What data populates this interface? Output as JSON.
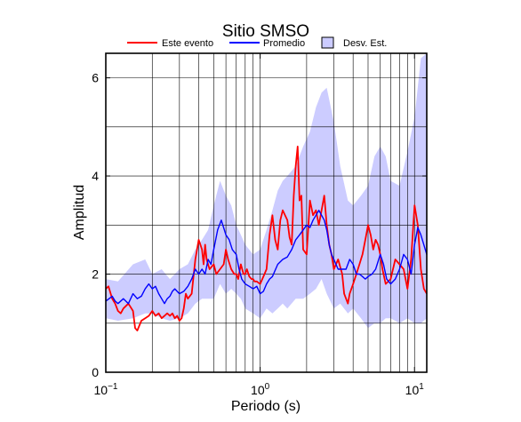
{
  "chart_data": {
    "type": "line",
    "title": "Sitio SMSO",
    "xlabel": "Periodo (s)",
    "ylabel": "Amplitud",
    "x_scale": "log",
    "xlim": [
      0.1,
      12
    ],
    "ylim": [
      0,
      6.5
    ],
    "x_ticks": [
      0.1,
      1,
      10
    ],
    "x_tick_labels": [
      {
        "base": "10",
        "exp": "−1"
      },
      {
        "base": "10",
        "exp": "0"
      },
      {
        "base": "10",
        "exp": "1"
      }
    ],
    "y_ticks": [
      0,
      2,
      4,
      6
    ],
    "y_tick_labels": [
      "0",
      "2",
      "4",
      "6"
    ],
    "grid": true,
    "legend_position": "top",
    "legend": [
      {
        "label": "Este evento",
        "kind": "line",
        "color": "#ff0000"
      },
      {
        "label": "Promedio",
        "kind": "line",
        "color": "#0000ff"
      },
      {
        "label": "Desv. Est.",
        "kind": "band",
        "color": "#ccccff"
      }
    ],
    "series": [
      {
        "name": "Este evento",
        "color": "#ff0000",
        "x": [
          0.1,
          0.104,
          0.11,
          0.115,
          0.12,
          0.125,
          0.13,
          0.14,
          0.15,
          0.155,
          0.16,
          0.17,
          0.18,
          0.19,
          0.2,
          0.21,
          0.22,
          0.23,
          0.24,
          0.25,
          0.26,
          0.27,
          0.28,
          0.29,
          0.3,
          0.31,
          0.32,
          0.33,
          0.34,
          0.36,
          0.38,
          0.4,
          0.41,
          0.42,
          0.43,
          0.44,
          0.45,
          0.47,
          0.5,
          0.52,
          0.55,
          0.58,
          0.6,
          0.62,
          0.65,
          0.68,
          0.7,
          0.72,
          0.75,
          0.78,
          0.8,
          0.82,
          0.85,
          0.88,
          0.9,
          0.92,
          0.95,
          1.0,
          1.05,
          1.1,
          1.15,
          1.2,
          1.25,
          1.3,
          1.35,
          1.4,
          1.5,
          1.55,
          1.6,
          1.65,
          1.7,
          1.75,
          1.8,
          1.85,
          1.9,
          2.0,
          2.1,
          2.2,
          2.3,
          2.4,
          2.5,
          2.6,
          2.7,
          2.8,
          2.9,
          3.0,
          3.2,
          3.4,
          3.5,
          3.7,
          3.8,
          4.0,
          4.2,
          4.4,
          4.6,
          4.8,
          5.0,
          5.2,
          5.4,
          5.6,
          5.8,
          6.0,
          6.2,
          6.5,
          7.0,
          7.5,
          8.0,
          8.5,
          9.0,
          9.5,
          10.0,
          10.5,
          11.0,
          11.5,
          12.0
        ],
        "y": [
          1.7,
          1.75,
          1.5,
          1.4,
          1.25,
          1.2,
          1.3,
          1.4,
          1.25,
          0.9,
          0.85,
          1.05,
          1.1,
          1.15,
          1.25,
          1.15,
          1.2,
          1.1,
          1.15,
          1.2,
          1.15,
          1.2,
          1.1,
          1.15,
          1.05,
          1.1,
          1.3,
          1.6,
          1.5,
          1.6,
          2.3,
          2.7,
          2.6,
          2.5,
          2.2,
          2.6,
          2.3,
          2.1,
          2.2,
          2.0,
          2.1,
          2.2,
          2.5,
          2.3,
          2.1,
          2.0,
          2.0,
          1.9,
          2.2,
          2.0,
          2.0,
          2.1,
          1.95,
          1.9,
          1.9,
          1.85,
          1.85,
          1.8,
          1.95,
          2.1,
          2.8,
          3.2,
          2.7,
          2.5,
          3.1,
          3.3,
          3.1,
          2.75,
          2.6,
          3.6,
          4.2,
          4.6,
          3.5,
          3.6,
          2.5,
          2.4,
          3.5,
          3.2,
          3.3,
          3.0,
          3.3,
          3.6,
          3.0,
          2.6,
          2.4,
          2.1,
          2.3,
          2.0,
          1.6,
          1.4,
          1.6,
          1.8,
          2.0,
          2.2,
          2.4,
          2.7,
          3.0,
          2.8,
          2.5,
          2.7,
          2.6,
          2.4,
          2.1,
          1.8,
          1.9,
          2.3,
          2.2,
          2.1,
          1.7,
          2.3,
          3.4,
          3.0,
          2.1,
          1.7,
          1.6
        ]
      },
      {
        "name": "Promedio",
        "color": "#0000ff",
        "x": [
          0.1,
          0.105,
          0.11,
          0.115,
          0.12,
          0.13,
          0.14,
          0.15,
          0.16,
          0.17,
          0.18,
          0.19,
          0.2,
          0.21,
          0.22,
          0.23,
          0.24,
          0.25,
          0.26,
          0.27,
          0.28,
          0.3,
          0.32,
          0.34,
          0.36,
          0.38,
          0.4,
          0.42,
          0.44,
          0.46,
          0.48,
          0.5,
          0.53,
          0.56,
          0.6,
          0.63,
          0.66,
          0.7,
          0.73,
          0.76,
          0.8,
          0.85,
          0.9,
          0.95,
          1.0,
          1.05,
          1.1,
          1.15,
          1.2,
          1.3,
          1.4,
          1.5,
          1.6,
          1.7,
          1.8,
          1.9,
          2.0,
          2.1,
          2.2,
          2.3,
          2.4,
          2.5,
          2.6,
          2.7,
          2.8,
          2.9,
          3.0,
          3.2,
          3.4,
          3.6,
          3.8,
          4.0,
          4.2,
          4.4,
          4.6,
          4.8,
          5.0,
          5.3,
          5.6,
          6.0,
          6.3,
          6.6,
          7.0,
          7.5,
          8.0,
          8.5,
          9.0,
          9.5,
          10.0,
          10.5,
          11.0,
          12.0
        ],
        "y": [
          1.45,
          1.5,
          1.55,
          1.45,
          1.4,
          1.5,
          1.4,
          1.6,
          1.5,
          1.55,
          1.7,
          1.8,
          1.7,
          1.75,
          1.6,
          1.5,
          1.4,
          1.5,
          1.55,
          1.65,
          1.7,
          1.6,
          1.65,
          1.75,
          1.9,
          2.1,
          2.0,
          2.1,
          2.0,
          2.3,
          2.2,
          2.5,
          2.9,
          3.1,
          2.8,
          2.7,
          2.5,
          2.4,
          2.1,
          1.9,
          1.8,
          1.75,
          1.7,
          1.75,
          1.6,
          1.65,
          1.8,
          1.9,
          1.95,
          2.2,
          2.3,
          2.35,
          2.5,
          2.7,
          2.8,
          2.9,
          3.0,
          2.95,
          3.1,
          3.2,
          3.3,
          3.2,
          3.1,
          2.9,
          2.6,
          2.4,
          2.3,
          2.1,
          2.1,
          2.1,
          2.3,
          2.2,
          2.0,
          2.0,
          1.95,
          1.9,
          1.95,
          2.0,
          2.1,
          2.4,
          2.2,
          1.9,
          1.8,
          1.9,
          2.1,
          2.4,
          2.3,
          2.0,
          2.6,
          2.95,
          2.8,
          2.4
        ]
      }
    ],
    "band": {
      "name": "Desv. Est.",
      "color": "#ccccff",
      "x": [
        0.1,
        0.12,
        0.15,
        0.18,
        0.2,
        0.23,
        0.26,
        0.3,
        0.34,
        0.38,
        0.42,
        0.46,
        0.5,
        0.55,
        0.6,
        0.65,
        0.7,
        0.75,
        0.8,
        0.9,
        1.0,
        1.1,
        1.2,
        1.3,
        1.4,
        1.5,
        1.7,
        1.9,
        2.1,
        2.3,
        2.5,
        2.7,
        3.0,
        3.3,
        3.7,
        4.0,
        4.5,
        5.0,
        5.5,
        6.0,
        6.5,
        7.0,
        8.0,
        9.0,
        10.0,
        11.0,
        12.0
      ],
      "upper": [
        1.9,
        1.85,
        2.2,
        2.3,
        2.0,
        2.1,
        1.9,
        2.1,
        2.2,
        2.5,
        2.7,
        2.9,
        3.4,
        3.9,
        3.6,
        3.4,
        3.0,
        2.8,
        2.6,
        2.4,
        2.5,
        2.9,
        3.3,
        3.7,
        3.9,
        4.0,
        4.2,
        4.6,
        4.9,
        5.4,
        5.7,
        5.8,
        5.1,
        4.2,
        3.5,
        3.4,
        3.6,
        3.8,
        4.4,
        4.6,
        4.4,
        3.9,
        3.8,
        4.5,
        5.2,
        6.4,
        6.6
      ],
      "lower": [
        1.1,
        1.05,
        1.1,
        1.2,
        1.2,
        1.1,
        1.05,
        1.1,
        1.2,
        1.4,
        1.5,
        1.5,
        1.5,
        1.8,
        1.6,
        1.7,
        1.6,
        1.5,
        1.3,
        1.2,
        1.1,
        1.3,
        1.2,
        1.3,
        1.4,
        1.3,
        1.5,
        1.5,
        1.6,
        1.7,
        1.9,
        1.6,
        1.3,
        1.4,
        1.2,
        1.3,
        1.1,
        0.9,
        1.0,
        1.0,
        1.1,
        1.1,
        1.0,
        1.1,
        1.0,
        1.0,
        1.1
      ]
    }
  }
}
